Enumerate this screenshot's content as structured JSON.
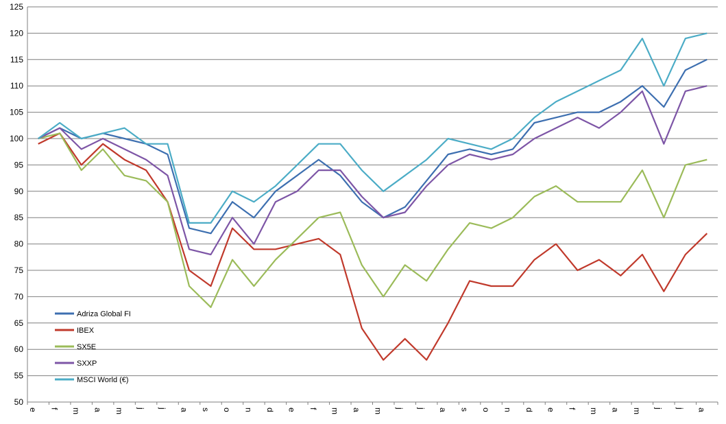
{
  "chart_data": {
    "type": "line",
    "title": "",
    "xlabel": "",
    "ylabel": "",
    "ylim": [
      50,
      125
    ],
    "yticks": [
      50,
      55,
      60,
      65,
      70,
      75,
      80,
      85,
      90,
      95,
      100,
      105,
      110,
      115,
      120,
      125
    ],
    "grid": "horizontal",
    "legend_position": "lower-left",
    "x_ticks": [
      "e",
      "f",
      "m",
      "a",
      "m",
      "j",
      "j",
      "a",
      "s",
      "o",
      "n",
      "d",
      "e",
      "f",
      "m",
      "a",
      "m",
      "j",
      "j",
      "a",
      "s",
      "o",
      "n",
      "d",
      "e",
      "f",
      "m",
      "a",
      "m",
      "j",
      "j",
      "a"
    ],
    "x": [
      0,
      1,
      2,
      3,
      4,
      5,
      6,
      7,
      8,
      9,
      10,
      11,
      12,
      13,
      14,
      15,
      16,
      17,
      18,
      19,
      20,
      21,
      22,
      23,
      24,
      25,
      26,
      27,
      28,
      29,
      30,
      31
    ],
    "series": [
      {
        "name": "Adriza Global FI",
        "color": "#3d6fb0",
        "values": [
          100,
          102,
          100,
          101,
          100,
          99,
          97,
          83,
          82,
          88,
          85,
          90,
          93,
          96,
          93,
          88,
          85,
          87,
          92,
          97,
          98,
          97,
          98,
          103,
          104,
          105,
          105,
          107,
          110,
          106,
          113,
          115
        ]
      },
      {
        "name": "IBEX",
        "color": "#c0392b",
        "values": [
          99,
          101,
          95,
          99,
          96,
          94,
          88,
          75,
          72,
          83,
          79,
          79,
          80,
          81,
          78,
          64,
          58,
          62,
          58,
          65,
          73,
          72,
          72,
          77,
          80,
          75,
          77,
          74,
          78,
          71,
          78,
          82
        ]
      },
      {
        "name": "SX5E",
        "color": "#9bbb59",
        "values": [
          100,
          101,
          94,
          98,
          93,
          92,
          88,
          72,
          68,
          77,
          72,
          77,
          81,
          85,
          86,
          76,
          70,
          76,
          73,
          79,
          84,
          83,
          85,
          89,
          91,
          88,
          88,
          88,
          94,
          85,
          95,
          96
        ]
      },
      {
        "name": "SXXP",
        "color": "#7d55a6",
        "values": [
          100,
          102,
          98,
          100,
          98,
          96,
          93,
          79,
          78,
          85,
          80,
          88,
          90,
          94,
          94,
          89,
          85,
          86,
          91,
          95,
          97,
          96,
          97,
          100,
          102,
          104,
          102,
          105,
          109,
          99,
          109,
          110
        ]
      },
      {
        "name": "MSCI World (€)",
        "color": "#4bacc6",
        "values": [
          100,
          103,
          100,
          101,
          102,
          99,
          99,
          84,
          84,
          90,
          88,
          91,
          95,
          99,
          99,
          94,
          90,
          93,
          96,
          100,
          99,
          98,
          100,
          104,
          107,
          109,
          111,
          113,
          119,
          110,
          119,
          120
        ]
      }
    ]
  }
}
